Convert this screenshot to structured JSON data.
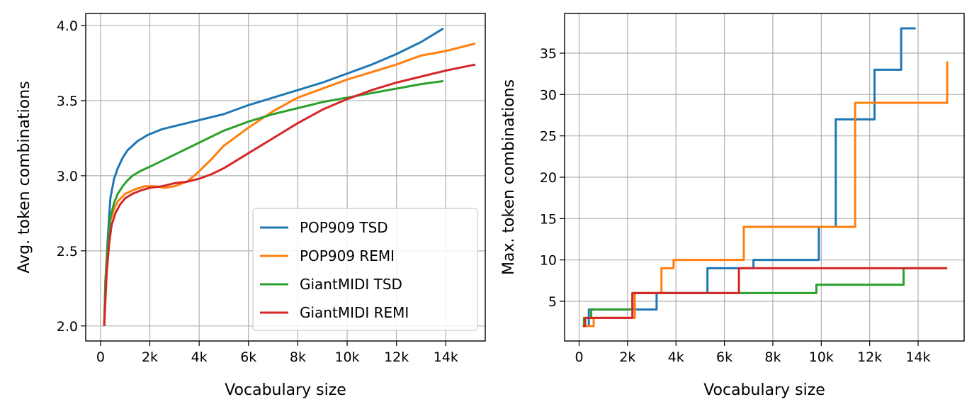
{
  "chart_data": [
    {
      "type": "line",
      "xlabel": "Vocabulary size",
      "ylabel": "Avg. token combinations",
      "xlim": [
        -600,
        15600
      ],
      "ylim": [
        1.9,
        4.08
      ],
      "x_ticks": [
        0,
        2000,
        4000,
        6000,
        8000,
        10000,
        12000,
        14000
      ],
      "x_tick_labels": [
        "0",
        "2k",
        "4k",
        "6k",
        "8k",
        "10k",
        "12k",
        "14k"
      ],
      "y_ticks": [
        2.0,
        2.5,
        3.0,
        3.5,
        4.0
      ],
      "y_tick_labels": [
        "2.0",
        "2.5",
        "3.0",
        "3.5",
        "4.0"
      ],
      "grid": true,
      "legend_position": "lower-right",
      "step": false,
      "series": [
        {
          "name": "POP909 TSD",
          "color": "#1f77b4",
          "x": [
            150,
            200,
            300,
            400,
            550,
            700,
            900,
            1100,
            1300,
            1500,
            1700,
            1900,
            2200,
            2500,
            3000,
            3500,
            4000,
            5000,
            6000,
            7000,
            8000,
            9000,
            10000,
            11000,
            12000,
            13000,
            13900
          ],
          "y": [
            2.0,
            2.3,
            2.6,
            2.85,
            2.98,
            3.05,
            3.12,
            3.17,
            3.2,
            3.23,
            3.25,
            3.27,
            3.29,
            3.31,
            3.33,
            3.35,
            3.37,
            3.41,
            3.47,
            3.52,
            3.57,
            3.62,
            3.68,
            3.74,
            3.81,
            3.89,
            3.98
          ]
        },
        {
          "name": "POP909 REMI",
          "color": "#ff7f0e",
          "x": [
            150,
            200,
            300,
            400,
            550,
            700,
            1000,
            1400,
            1800,
            2200,
            2600,
            3000,
            3500,
            3800,
            4000,
            4500,
            5000,
            5500,
            6000,
            7000,
            8000,
            9000,
            10000,
            11000,
            12000,
            13000,
            14000,
            15200
          ],
          "y": [
            2.0,
            2.3,
            2.55,
            2.7,
            2.78,
            2.83,
            2.88,
            2.91,
            2.93,
            2.93,
            2.92,
            2.93,
            2.96,
            3.0,
            3.03,
            3.11,
            3.2,
            3.26,
            3.32,
            3.43,
            3.52,
            3.58,
            3.64,
            3.69,
            3.74,
            3.8,
            3.83,
            3.88
          ]
        },
        {
          "name": "GiantMIDI TSD",
          "color": "#2ca02c",
          "x": [
            150,
            200,
            300,
            400,
            550,
            700,
            900,
            1100,
            1300,
            1600,
            2000,
            2500,
            3000,
            3500,
            4000,
            4500,
            5000,
            5500,
            6000,
            7000,
            8000,
            9000,
            10000,
            11000,
            12000,
            13000,
            13900
          ],
          "y": [
            2.0,
            2.3,
            2.55,
            2.72,
            2.82,
            2.88,
            2.93,
            2.97,
            3.0,
            3.03,
            3.06,
            3.1,
            3.14,
            3.18,
            3.22,
            3.26,
            3.3,
            3.33,
            3.36,
            3.41,
            3.45,
            3.49,
            3.52,
            3.55,
            3.58,
            3.61,
            3.63
          ]
        },
        {
          "name": "GiantMIDI REMI",
          "color": "#d62728",
          "x": [
            150,
            250,
            350,
            450,
            600,
            800,
            1000,
            1300,
            1600,
            2000,
            2500,
            3000,
            3500,
            4000,
            4500,
            5000,
            5500,
            6000,
            7000,
            8000,
            9000,
            10000,
            11000,
            12000,
            13000,
            14000,
            15200
          ],
          "y": [
            2.0,
            2.35,
            2.55,
            2.67,
            2.75,
            2.81,
            2.85,
            2.88,
            2.9,
            2.92,
            2.93,
            2.95,
            2.96,
            2.98,
            3.01,
            3.05,
            3.1,
            3.15,
            3.25,
            3.35,
            3.44,
            3.51,
            3.57,
            3.62,
            3.66,
            3.7,
            3.74
          ]
        }
      ]
    },
    {
      "type": "line",
      "xlabel": "Vocabulary size",
      "ylabel": "Max. token combinations",
      "xlim": [
        -600,
        15900
      ],
      "ylim": [
        0.2,
        39.8
      ],
      "x_ticks": [
        0,
        2000,
        4000,
        6000,
        8000,
        10000,
        12000,
        14000
      ],
      "x_tick_labels": [
        "0",
        "2k",
        "4k",
        "6k",
        "8k",
        "10k",
        "12k",
        "14k"
      ],
      "y_ticks": [
        5,
        10,
        15,
        20,
        25,
        30,
        35
      ],
      "y_tick_labels": [
        "5",
        "10",
        "15",
        "20",
        "25",
        "30",
        "35"
      ],
      "grid": true,
      "step": true,
      "series": [
        {
          "color": "#1f77b4",
          "x": [
            150,
            400,
            3200,
            5300,
            7200,
            9900,
            10600,
            12200,
            13300,
            13900
          ],
          "y": [
            2,
            4,
            6,
            9,
            10,
            14,
            27,
            33,
            38,
            38
          ]
        },
        {
          "color": "#ff7f0e",
          "x": [
            150,
            600,
            2300,
            3400,
            3900,
            6800,
            11400,
            15200
          ],
          "y": [
            2,
            3,
            6,
            9,
            10,
            14,
            29,
            34
          ]
        },
        {
          "color": "#2ca02c",
          "x": [
            150,
            200,
            500,
            2200,
            6600,
            9800,
            13400,
            15200
          ],
          "y": [
            2,
            3,
            4,
            6,
            6,
            7,
            9,
            9
          ]
        },
        {
          "color": "#d62728",
          "x": [
            150,
            250,
            2200,
            6600,
            15200
          ],
          "y": [
            2,
            3,
            6,
            9,
            9
          ]
        }
      ]
    }
  ]
}
